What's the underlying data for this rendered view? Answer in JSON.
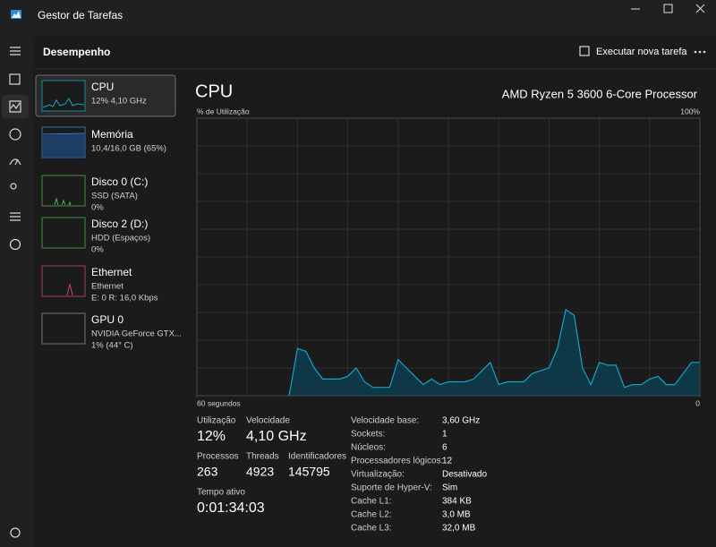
{
  "window": {
    "title": "Gestor de Tarefas"
  },
  "header": {
    "title": "Desempenho",
    "action": "Executar nova tarefa"
  },
  "sidebar": [
    {
      "name": "CPU",
      "lines": [
        "12% 4,10 GHz"
      ]
    },
    {
      "name": "Memória",
      "lines": [
        "10,4/16,0 GB (65%)"
      ]
    },
    {
      "name": "Disco 0 (C:)",
      "lines": [
        "SSD (SATA)",
        "0%"
      ]
    },
    {
      "name": "Disco 2 (D:)",
      "lines": [
        "HDD (Espaços)",
        "0%"
      ]
    },
    {
      "name": "Ethernet",
      "lines": [
        "Ethernet",
        "E: 0 R: 16,0 Kbps"
      ]
    },
    {
      "name": "GPU 0",
      "lines": [
        "NVIDIA GeForce GTX...",
        "1% (44° C)"
      ]
    }
  ],
  "detail": {
    "title": "CPU",
    "subtitle": "AMD Ryzen 5 3600 6-Core Processor"
  },
  "chart_data": {
    "type": "area",
    "y_label": "% de Utilização",
    "ylim": [
      0,
      100
    ],
    "yticks": [
      {
        "value": 100,
        "label": "100%"
      }
    ],
    "xlim": [
      0,
      60
    ],
    "xticks": [
      {
        "value": 0,
        "label": "60 segundos"
      },
      {
        "value": 60,
        "label": "0"
      }
    ],
    "color": "#17a2c8",
    "fill": "#0e3846",
    "grid": true,
    "values": [
      null,
      null,
      null,
      null,
      null,
      null,
      null,
      null,
      null,
      null,
      null,
      0,
      17,
      16,
      10,
      6,
      6,
      6,
      7,
      10,
      5,
      3,
      3,
      3,
      13,
      10,
      7,
      4,
      6,
      4,
      5,
      5,
      5,
      6,
      9,
      12,
      4,
      5,
      5,
      5,
      8,
      9,
      10,
      17,
      31,
      29,
      10,
      4,
      12,
      11,
      11,
      3,
      4,
      4,
      6,
      7,
      4,
      4,
      8,
      12,
      12
    ]
  },
  "stats": [
    {
      "label": "Utilização",
      "value": "12%"
    },
    {
      "label": "Velocidade",
      "value": "4,10 GHz"
    },
    {
      "label": "Processos",
      "value": "263"
    },
    {
      "label": "Threads",
      "value": "4923"
    },
    {
      "label": "Identificadores",
      "value": "145795"
    },
    {
      "label": "Tempo ativo",
      "value": "0:01:34:03"
    }
  ],
  "specs": [
    {
      "label": "Velocidade base:",
      "value": "3,60 GHz"
    },
    {
      "label": "Sockets:",
      "value": "1"
    },
    {
      "label": "Núcleos:",
      "value": "6"
    },
    {
      "label": "Processadores lógicos:",
      "value": "12"
    },
    {
      "label": "Virtualização:",
      "value": "Desativado"
    },
    {
      "label": "Suporte de Hyper-V:",
      "value": "Sim"
    },
    {
      "label": "Cache L1:",
      "value": "384 KB"
    },
    {
      "label": "Cache L2:",
      "value": "3,0 MB"
    },
    {
      "label": "Cache L3:",
      "value": "32,0 MB"
    }
  ]
}
